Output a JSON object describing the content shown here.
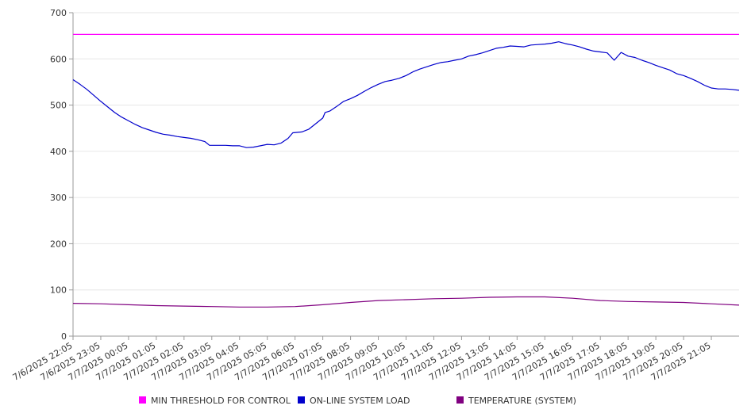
{
  "chart_data": {
    "type": "line",
    "title": "",
    "xlabel": "",
    "ylabel": "",
    "ylim": [
      0,
      700
    ],
    "y_ticks": [
      0,
      100,
      200,
      300,
      400,
      500,
      600,
      700
    ],
    "x_tick_labels": [
      "7/6/2025 22:05",
      "7/6/2025 23:05",
      "7/7/2025 00:05",
      "7/7/2025 01:05",
      "7/7/2025 02:05",
      "7/7/2025 03:05",
      "7/7/2025 04:05",
      "7/7/2025 05:05",
      "7/7/2025 06:05",
      "7/7/2025 07:05",
      "7/7/2025 08:05",
      "7/7/2025 09:05",
      "7/7/2025 10:05",
      "7/7/2025 11:05",
      "7/7/2025 12:05",
      "7/7/2025 13:05",
      "7/7/2025 14:05",
      "7/7/2025 15:05",
      "7/7/2025 16:05",
      "7/7/2025 17:05",
      "7/7/2025 18:05",
      "7/7/2025 19:05",
      "7/7/2025 20:05",
      "7/7/2025 21:05"
    ],
    "x_range": [
      "7/6/2025 22:05",
      "7/7/2025 22:05"
    ],
    "grid": "horizontal",
    "legend_position": "bottom",
    "series": [
      {
        "name": "MIN THRESHOLD FOR CONTROL",
        "color": "#ff00ff",
        "points": [
          [
            "7/6/2025 22:05",
            653
          ],
          [
            "7/7/2025 22:05",
            653
          ]
        ]
      },
      {
        "name": "ON-LINE SYSTEM LOAD",
        "color": "#0000cc",
        "points": [
          [
            "7/6/2025 22:05",
            555
          ],
          [
            "7/6/2025 22:20",
            545
          ],
          [
            "7/6/2025 22:35",
            534
          ],
          [
            "7/6/2025 22:50",
            521
          ],
          [
            "7/6/2025 23:05",
            508
          ],
          [
            "7/6/2025 23:20",
            496
          ],
          [
            "7/6/2025 23:35",
            484
          ],
          [
            "7/6/2025 23:50",
            474
          ],
          [
            "7/7/2025 00:05",
            466
          ],
          [
            "7/7/2025 00:20",
            458
          ],
          [
            "7/7/2025 00:35",
            451
          ],
          [
            "7/7/2025 00:50",
            446
          ],
          [
            "7/7/2025 01:05",
            441
          ],
          [
            "7/7/2025 01:20",
            437
          ],
          [
            "7/7/2025 01:35",
            435
          ],
          [
            "7/7/2025 01:50",
            432
          ],
          [
            "7/7/2025 02:05",
            430
          ],
          [
            "7/7/2025 02:20",
            428
          ],
          [
            "7/7/2025 02:35",
            425
          ],
          [
            "7/7/2025 02:50",
            421
          ],
          [
            "7/7/2025 03:00",
            413
          ],
          [
            "7/7/2025 03:20",
            413
          ],
          [
            "7/7/2025 03:35",
            413
          ],
          [
            "7/7/2025 03:50",
            412
          ],
          [
            "7/7/2025 04:05",
            412
          ],
          [
            "7/7/2025 04:20",
            408
          ],
          [
            "7/7/2025 04:35",
            409
          ],
          [
            "7/7/2025 04:50",
            412
          ],
          [
            "7/7/2025 05:05",
            415
          ],
          [
            "7/7/2025 05:20",
            414
          ],
          [
            "7/7/2025 05:35",
            418
          ],
          [
            "7/7/2025 05:50",
            428
          ],
          [
            "7/7/2025 06:00",
            440
          ],
          [
            "7/7/2025 06:20",
            442
          ],
          [
            "7/7/2025 06:35",
            448
          ],
          [
            "7/7/2025 06:50",
            460
          ],
          [
            "7/7/2025 07:05",
            472
          ],
          [
            "7/7/2025 07:10",
            484
          ],
          [
            "7/7/2025 07:20",
            487
          ],
          [
            "7/7/2025 07:35",
            497
          ],
          [
            "7/7/2025 07:50",
            508
          ],
          [
            "7/7/2025 08:05",
            514
          ],
          [
            "7/7/2025 08:20",
            521
          ],
          [
            "7/7/2025 08:35",
            530
          ],
          [
            "7/7/2025 08:50",
            538
          ],
          [
            "7/7/2025 09:05",
            545
          ],
          [
            "7/7/2025 09:20",
            551
          ],
          [
            "7/7/2025 09:35",
            554
          ],
          [
            "7/7/2025 09:50",
            558
          ],
          [
            "7/7/2025 10:05",
            564
          ],
          [
            "7/7/2025 10:20",
            572
          ],
          [
            "7/7/2025 10:35",
            578
          ],
          [
            "7/7/2025 10:50",
            583
          ],
          [
            "7/7/2025 11:05",
            588
          ],
          [
            "7/7/2025 11:20",
            592
          ],
          [
            "7/7/2025 11:35",
            594
          ],
          [
            "7/7/2025 11:50",
            597
          ],
          [
            "7/7/2025 12:05",
            600
          ],
          [
            "7/7/2025 12:20",
            606
          ],
          [
            "7/7/2025 12:35",
            609
          ],
          [
            "7/7/2025 12:50",
            613
          ],
          [
            "7/7/2025 13:05",
            618
          ],
          [
            "7/7/2025 13:20",
            623
          ],
          [
            "7/7/2025 13:35",
            625
          ],
          [
            "7/7/2025 13:50",
            628
          ],
          [
            "7/7/2025 14:05",
            627
          ],
          [
            "7/7/2025 14:20",
            626
          ],
          [
            "7/7/2025 14:35",
            630
          ],
          [
            "7/7/2025 14:50",
            631
          ],
          [
            "7/7/2025 15:05",
            632
          ],
          [
            "7/7/2025 15:20",
            634
          ],
          [
            "7/7/2025 15:35",
            637
          ],
          [
            "7/7/2025 15:50",
            633
          ],
          [
            "7/7/2025 16:05",
            630
          ],
          [
            "7/7/2025 16:20",
            626
          ],
          [
            "7/7/2025 16:35",
            621
          ],
          [
            "7/7/2025 16:50",
            617
          ],
          [
            "7/7/2025 17:05",
            615
          ],
          [
            "7/7/2025 17:20",
            613
          ],
          [
            "7/7/2025 17:35",
            597
          ],
          [
            "7/7/2025 17:50",
            614
          ],
          [
            "7/7/2025 18:05",
            606
          ],
          [
            "7/7/2025 18:20",
            603
          ],
          [
            "7/7/2025 18:35",
            597
          ],
          [
            "7/7/2025 18:50",
            592
          ],
          [
            "7/7/2025 19:05",
            586
          ],
          [
            "7/7/2025 19:20",
            581
          ],
          [
            "7/7/2025 19:35",
            576
          ],
          [
            "7/7/2025 19:50",
            568
          ],
          [
            "7/7/2025 20:05",
            564
          ],
          [
            "7/7/2025 20:20",
            558
          ],
          [
            "7/7/2025 20:35",
            551
          ],
          [
            "7/7/2025 20:50",
            543
          ],
          [
            "7/7/2025 21:05",
            537
          ],
          [
            "7/7/2025 21:20",
            535
          ],
          [
            "7/7/2025 21:35",
            535
          ],
          [
            "7/7/2025 21:50",
            534
          ],
          [
            "7/7/2025 22:05",
            532
          ]
        ]
      },
      {
        "name": "TEMPERATURE (SYSTEM)",
        "color": "#800080",
        "points": [
          [
            "7/6/2025 22:05",
            71
          ],
          [
            "7/6/2025 23:05",
            70
          ],
          [
            "7/7/2025 00:05",
            68
          ],
          [
            "7/7/2025 01:05",
            66
          ],
          [
            "7/7/2025 02:05",
            65
          ],
          [
            "7/7/2025 03:05",
            64
          ],
          [
            "7/7/2025 04:05",
            63
          ],
          [
            "7/7/2025 05:05",
            63
          ],
          [
            "7/7/2025 06:05",
            64
          ],
          [
            "7/7/2025 07:05",
            68
          ],
          [
            "7/7/2025 08:05",
            73
          ],
          [
            "7/7/2025 09:05",
            77
          ],
          [
            "7/7/2025 10:05",
            79
          ],
          [
            "7/7/2025 11:05",
            81
          ],
          [
            "7/7/2025 12:05",
            82
          ],
          [
            "7/7/2025 13:05",
            84
          ],
          [
            "7/7/2025 14:05",
            85
          ],
          [
            "7/7/2025 15:05",
            85
          ],
          [
            "7/7/2025 16:05",
            82
          ],
          [
            "7/7/2025 17:05",
            77
          ],
          [
            "7/7/2025 18:05",
            75
          ],
          [
            "7/7/2025 19:05",
            74
          ],
          [
            "7/7/2025 20:05",
            73
          ],
          [
            "7/7/2025 21:05",
            70
          ],
          [
            "7/7/2025 22:05",
            67
          ]
        ]
      }
    ]
  }
}
